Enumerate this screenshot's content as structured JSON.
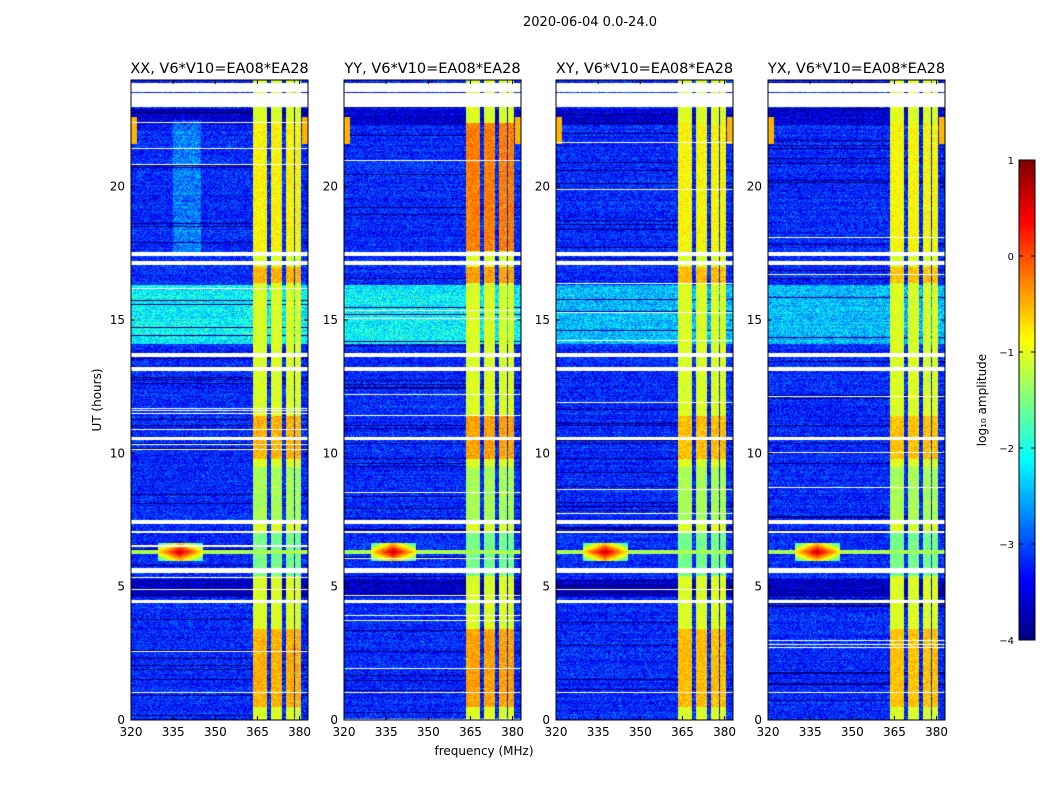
{
  "chart_data": {
    "type": "heatmap",
    "suptitle": "2020-06-04 0.0-24.0",
    "xlabel": "frequency (MHz)",
    "ylabel": "UT (hours)",
    "xlim": [
      320,
      383
    ],
    "ylim": [
      0,
      24
    ],
    "xticks": [
      320,
      335,
      350,
      365,
      380
    ],
    "yticks": [
      0,
      5,
      10,
      15,
      20
    ],
    "panels": [
      {
        "title": "XX, V6*V10=EA08*EA28",
        "strength": 1.0
      },
      {
        "title": "YY, V6*V10=EA08*EA28",
        "strength": 1.15
      },
      {
        "title": "XY, V6*V10=EA08*EA28",
        "strength": 0.9
      },
      {
        "title": "YX, V6*V10=EA08*EA28",
        "strength": 0.85
      }
    ],
    "colorbar": {
      "label": "log₁₀ amplitude",
      "vmin": -4,
      "vmax": 1,
      "ticks": [
        -4,
        -3,
        -2,
        -1,
        0,
        1
      ],
      "tick_labels": [
        "−4",
        "−3",
        "−2",
        "−1",
        "0",
        "1"
      ],
      "colormap": "jet"
    },
    "flagged_hours": [
      [
        23.0,
        23.5
      ],
      [
        23.55,
        23.9
      ],
      [
        17.4,
        17.55
      ],
      [
        17.05,
        17.2
      ],
      [
        13.6,
        13.75
      ],
      [
        13.1,
        13.25
      ],
      [
        10.5,
        10.6
      ],
      [
        7.35,
        7.5
      ],
      [
        7.0,
        7.1
      ],
      [
        5.5,
        5.7
      ],
      [
        4.4,
        4.5
      ],
      [
        1.0,
        1.05
      ]
    ],
    "rfi_bands_mhz": [
      [
        363.5,
        368.3
      ],
      [
        370.0,
        373.8
      ],
      [
        375.0,
        378.0
      ],
      [
        378.5,
        380.5
      ]
    ],
    "rfi_event_hour": 6.3,
    "rfi_event_freq_mhz": 337.5
  }
}
